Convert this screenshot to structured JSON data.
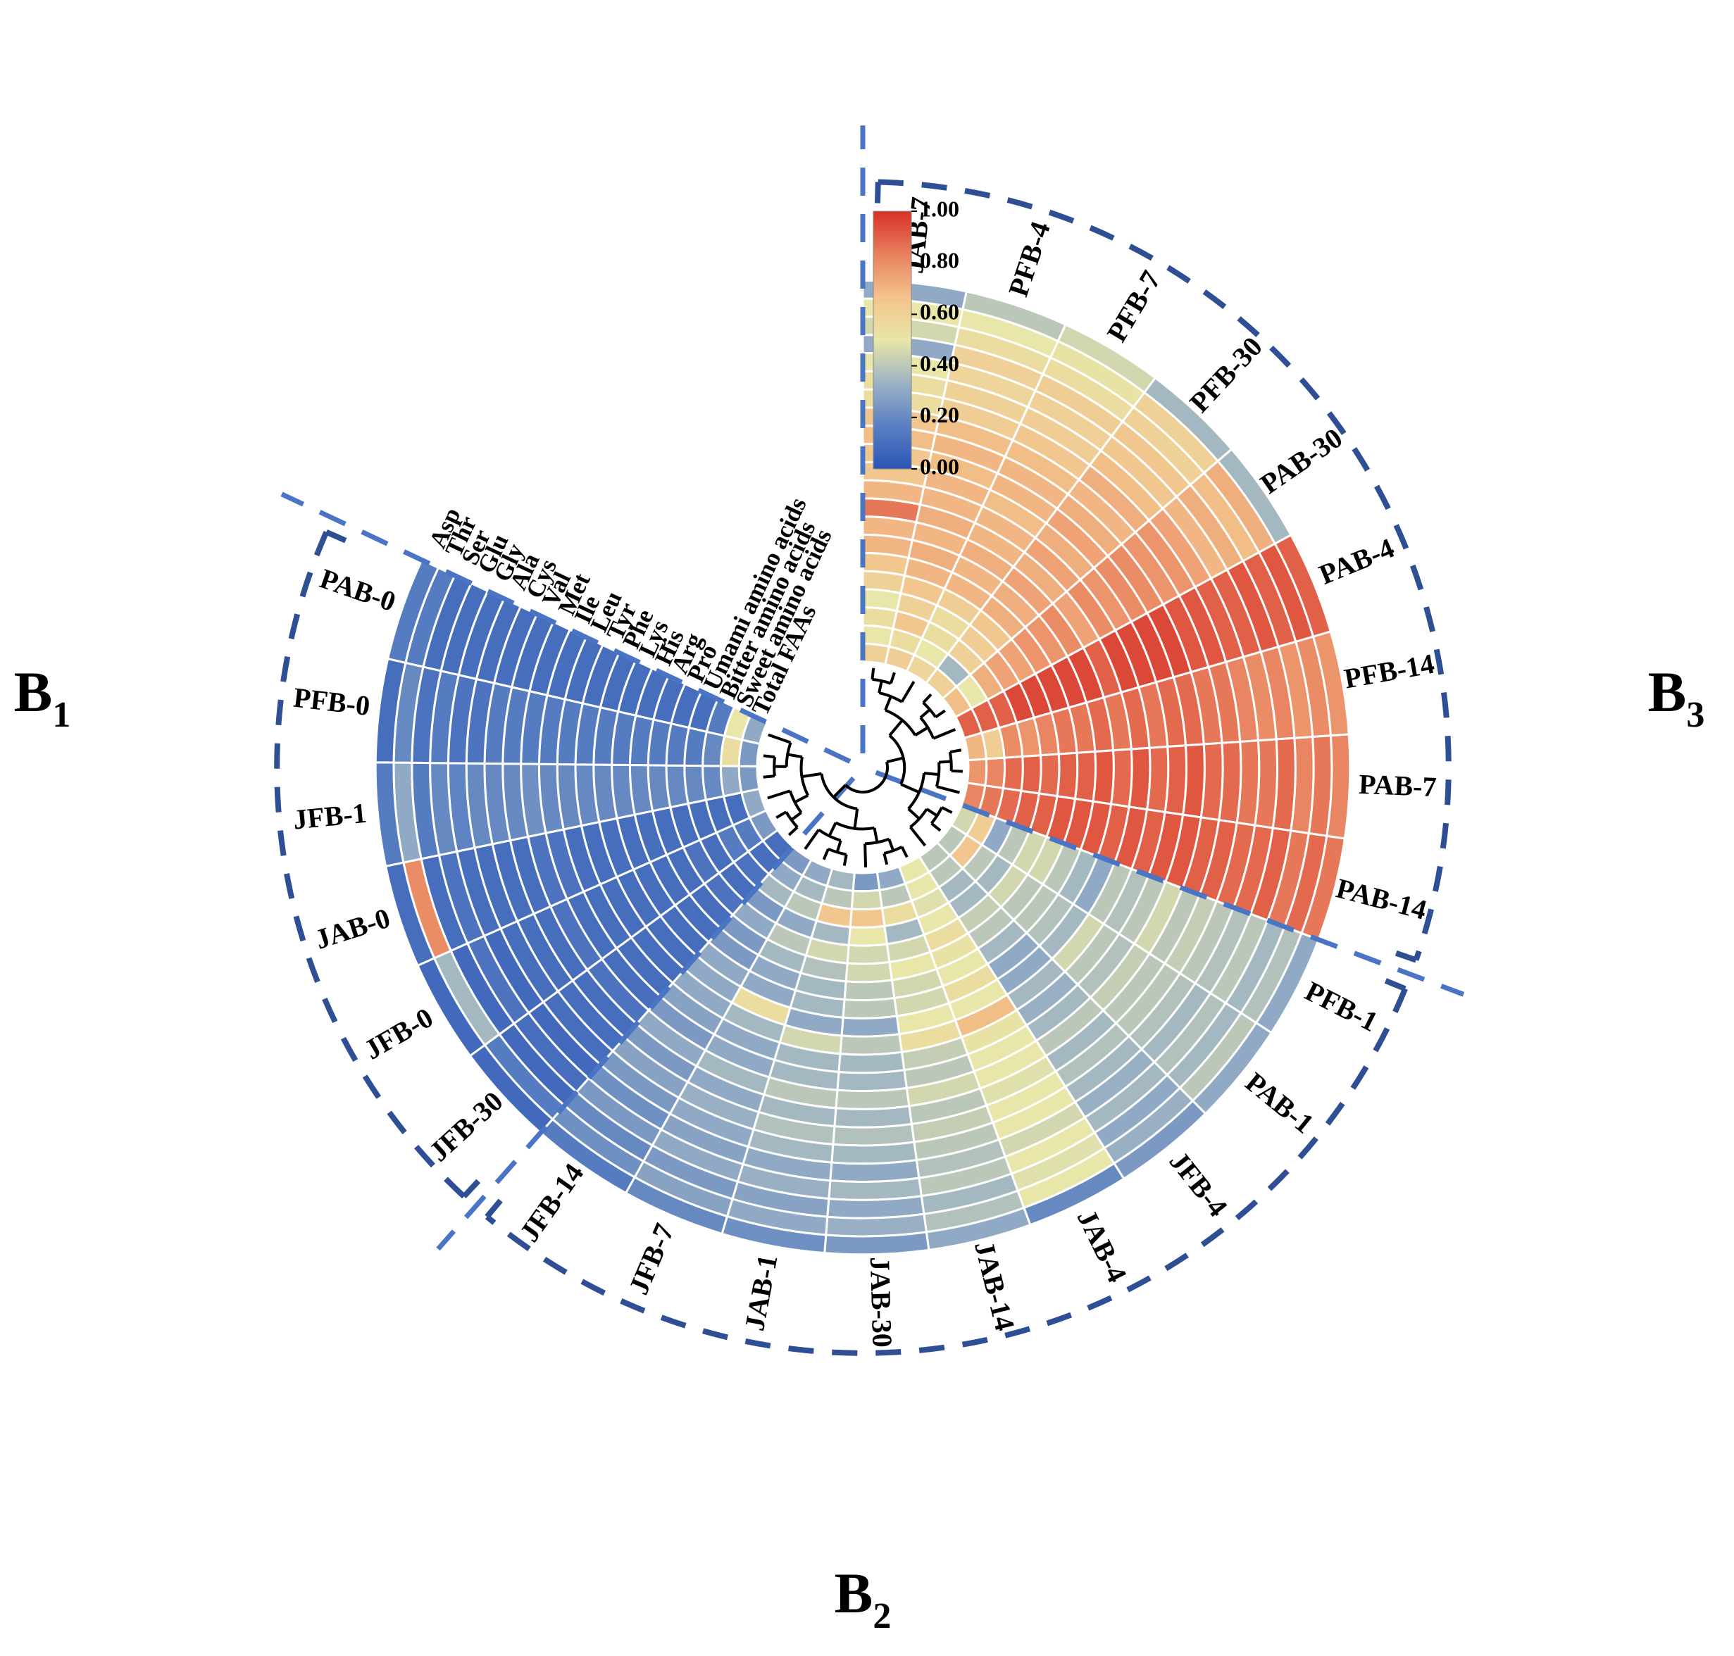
{
  "chart_data": {
    "type": "heatmap",
    "title": "",
    "variables": [
      "Total FAAs",
      "Sweet amino acids",
      "Bitter amino acids",
      "Umami amino acids",
      "Pro",
      "Arg",
      "His",
      "Lys",
      "Phe",
      "Tyr",
      "Leu",
      "Ile",
      "Met",
      "Val",
      "Cys",
      "Ala",
      "Gly",
      "Glu",
      "Ser",
      "Thr",
      "Asp"
    ],
    "samples": [
      "JAB-7",
      "PFB-4",
      "PFB-7",
      "PFB-30",
      "PAB-30",
      "PAB-4",
      "PFB-14",
      "PAB-7",
      "PAB-14",
      "PFB-1",
      "PAB-1",
      "JFB-4",
      "JAB-4",
      "JAB-14",
      "JAB-30",
      "JAB-1",
      "JFB-7",
      "JFB-14",
      "JFB-30",
      "JFB-0",
      "JAB-0",
      "JFB-1",
      "PFB-0",
      "PAB-0"
    ],
    "values": [
      [
        0.6,
        0.5,
        0.55,
        0.5,
        0.6,
        0.65,
        0.7,
        0.7,
        0.85,
        0.7,
        0.65,
        0.65,
        0.68,
        0.65,
        0.55,
        0.55,
        0.5,
        0.3,
        0.45,
        0.5,
        0.3
      ],
      [
        0.62,
        0.55,
        0.65,
        0.6,
        0.65,
        0.7,
        0.72,
        0.7,
        0.72,
        0.7,
        0.7,
        0.68,
        0.7,
        0.68,
        0.62,
        0.6,
        0.58,
        0.6,
        0.55,
        0.5,
        0.4
      ],
      [
        0.58,
        0.5,
        0.55,
        0.55,
        0.62,
        0.7,
        0.7,
        0.72,
        0.7,
        0.7,
        0.68,
        0.7,
        0.7,
        0.68,
        0.65,
        0.62,
        0.6,
        0.62,
        0.55,
        0.52,
        0.45
      ],
      [
        0.6,
        0.35,
        0.6,
        0.62,
        0.65,
        0.72,
        0.72,
        0.75,
        0.72,
        0.75,
        0.72,
        0.75,
        0.72,
        0.7,
        0.72,
        0.68,
        0.65,
        0.65,
        0.6,
        0.6,
        0.35
      ],
      [
        0.68,
        0.5,
        0.72,
        0.75,
        0.75,
        0.78,
        0.78,
        0.8,
        0.75,
        0.8,
        0.78,
        0.8,
        0.8,
        0.78,
        0.78,
        0.75,
        0.7,
        0.72,
        0.68,
        0.72,
        0.35
      ],
      [
        0.9,
        0.9,
        0.9,
        0.95,
        0.95,
        0.95,
        0.95,
        0.95,
        0.9,
        0.95,
        0.95,
        0.95,
        0.95,
        0.92,
        0.92,
        0.9,
        0.9,
        0.92,
        0.9,
        0.92,
        0.9
      ],
      [
        0.7,
        0.62,
        0.8,
        0.78,
        0.82,
        0.85,
        0.85,
        0.88,
        0.85,
        0.88,
        0.85,
        0.88,
        0.88,
        0.85,
        0.85,
        0.82,
        0.8,
        0.82,
        0.78,
        0.8,
        0.78
      ],
      [
        0.78,
        0.82,
        0.88,
        0.9,
        0.88,
        0.9,
        0.9,
        0.92,
        0.88,
        0.92,
        0.88,
        0.9,
        0.92,
        0.88,
        0.88,
        0.85,
        0.85,
        0.88,
        0.82,
        0.85,
        0.82
      ],
      [
        0.82,
        0.85,
        0.88,
        0.9,
        0.9,
        0.92,
        0.92,
        0.92,
        0.9,
        0.92,
        0.9,
        0.92,
        0.92,
        0.9,
        0.9,
        0.88,
        0.88,
        0.9,
        0.85,
        0.88,
        0.85
      ],
      [
        0.45,
        0.62,
        0.3,
        0.4,
        0.45,
        0.45,
        0.4,
        0.35,
        0.3,
        0.4,
        0.38,
        0.4,
        0.45,
        0.4,
        0.42,
        0.4,
        0.38,
        0.4,
        0.35,
        0.38,
        0.3
      ],
      [
        0.4,
        0.65,
        0.4,
        0.35,
        0.45,
        0.4,
        0.4,
        0.38,
        0.35,
        0.45,
        0.4,
        0.38,
        0.42,
        0.4,
        0.4,
        0.38,
        0.35,
        0.38,
        0.35,
        0.4,
        0.3
      ],
      [
        0.4,
        0.4,
        0.35,
        0.35,
        0.42,
        0.4,
        0.35,
        0.3,
        0.3,
        0.35,
        0.32,
        0.35,
        0.4,
        0.35,
        0.38,
        0.35,
        0.32,
        0.35,
        0.3,
        0.32,
        0.25
      ],
      [
        0.5,
        0.5,
        0.48,
        0.5,
        0.55,
        0.52,
        0.5,
        0.55,
        0.5,
        0.68,
        0.52,
        0.5,
        0.5,
        0.48,
        0.5,
        0.5,
        0.45,
        0.5,
        0.48,
        0.5,
        0.2
      ],
      [
        0.3,
        0.4,
        0.55,
        0.35,
        0.45,
        0.5,
        0.45,
        0.45,
        0.5,
        0.55,
        0.42,
        0.4,
        0.45,
        0.4,
        0.42,
        0.4,
        0.38,
        0.4,
        0.35,
        0.38,
        0.3
      ],
      [
        0.25,
        0.45,
        0.65,
        0.5,
        0.45,
        0.45,
        0.4,
        0.4,
        0.3,
        0.4,
        0.35,
        0.35,
        0.4,
        0.35,
        0.38,
        0.35,
        0.3,
        0.35,
        0.3,
        0.32,
        0.25
      ],
      [
        0.35,
        0.4,
        0.65,
        0.35,
        0.45,
        0.38,
        0.35,
        0.35,
        0.3,
        0.45,
        0.35,
        0.35,
        0.4,
        0.35,
        0.38,
        0.35,
        0.3,
        0.32,
        0.28,
        0.3,
        0.22
      ],
      [
        0.3,
        0.35,
        0.4,
        0.3,
        0.4,
        0.35,
        0.3,
        0.3,
        0.55,
        0.35,
        0.3,
        0.3,
        0.35,
        0.3,
        0.32,
        0.3,
        0.28,
        0.3,
        0.25,
        0.28,
        0.2
      ],
      [
        0.25,
        0.3,
        0.35,
        0.25,
        0.3,
        0.25,
        0.25,
        0.3,
        0.3,
        0.3,
        0.28,
        0.25,
        0.3,
        0.25,
        0.28,
        0.25,
        0.22,
        0.25,
        0.2,
        0.22,
        0.15
      ],
      [
        0.1,
        0.1,
        0.12,
        0.1,
        0.12,
        0.1,
        0.1,
        0.1,
        0.1,
        0.1,
        0.1,
        0.1,
        0.12,
        0.1,
        0.1,
        0.1,
        0.08,
        0.1,
        0.08,
        0.15,
        0.08
      ],
      [
        0.25,
        0.15,
        0.15,
        0.1,
        0.12,
        0.1,
        0.1,
        0.1,
        0.1,
        0.1,
        0.1,
        0.1,
        0.12,
        0.1,
        0.1,
        0.1,
        0.08,
        0.12,
        0.08,
        0.35,
        0.08
      ],
      [
        0.3,
        0.1,
        0.1,
        0.1,
        0.1,
        0.1,
        0.1,
        0.1,
        0.1,
        0.1,
        0.1,
        0.12,
        0.12,
        0.1,
        0.1,
        0.1,
        0.1,
        0.12,
        0.1,
        0.8,
        0.1
      ],
      [
        0.25,
        0.3,
        0.2,
        0.2,
        0.2,
        0.2,
        0.2,
        0.2,
        0.2,
        0.2,
        0.2,
        0.2,
        0.22,
        0.2,
        0.2,
        0.2,
        0.18,
        0.2,
        0.15,
        0.3,
        0.15
      ],
      [
        0.25,
        0.55,
        0.2,
        0.15,
        0.15,
        0.15,
        0.15,
        0.15,
        0.15,
        0.15,
        0.15,
        0.15,
        0.15,
        0.15,
        0.15,
        0.12,
        0.12,
        0.15,
        0.12,
        0.2,
        0.1
      ],
      [
        0.3,
        0.5,
        0.15,
        0.1,
        0.1,
        0.1,
        0.1,
        0.1,
        0.1,
        0.1,
        0.1,
        0.1,
        0.1,
        0.1,
        0.1,
        0.1,
        0.1,
        0.1,
        0.1,
        0.15,
        0.15
      ]
    ],
    "colorbar": {
      "min": 0.0,
      "max": 1.0,
      "ticks": [
        "0.00",
        "0.20",
        "0.40",
        "0.60",
        "0.80",
        "1.00"
      ]
    },
    "clusters": [
      {
        "main": "B",
        "sub": "1",
        "samples": [
          "PAB-0",
          "PFB-0",
          "JFB-1",
          "JAB-0",
          "JFB-0",
          "JFB-30"
        ]
      },
      {
        "main": "B",
        "sub": "2",
        "samples": [
          "JFB-14",
          "JFB-7",
          "JAB-1",
          "JAB-30",
          "JAB-14",
          "JAB-4",
          "JFB-4",
          "PAB-1",
          "PFB-1"
        ]
      },
      {
        "main": "B",
        "sub": "3",
        "samples": [
          "JAB-7",
          "PFB-4",
          "PFB-7",
          "PFB-30",
          "PAB-30",
          "PAB-4",
          "PFB-14",
          "PAB-7",
          "PAB-14"
        ]
      }
    ],
    "colors": {
      "scale": [
        "#2b55b5",
        "#5a7fc2",
        "#9db3c4",
        "#e8e6a8",
        "#f3c38c",
        "#e8805e",
        "#d73027"
      ],
      "divider": "#4a74c4",
      "cluster_ring": "#2f4f94",
      "dendrogram": "#000000"
    }
  }
}
